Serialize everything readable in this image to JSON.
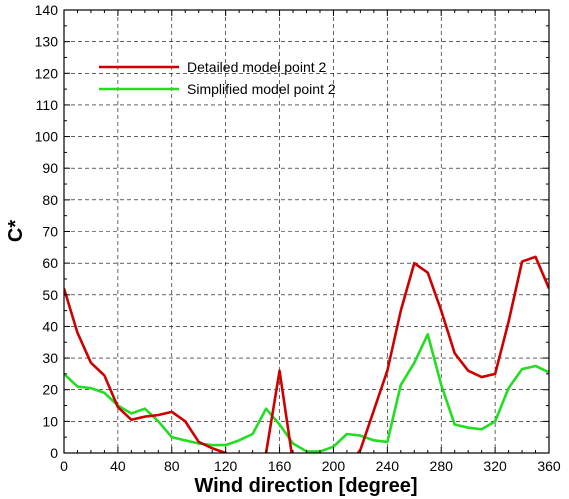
{
  "chart_data": {
    "type": "line",
    "title": "",
    "xlabel": "Wind direction [degree]",
    "ylabel": "C*",
    "xlim": [
      0,
      360
    ],
    "ylim": [
      0,
      140
    ],
    "xticks": [
      0,
      40,
      80,
      120,
      160,
      200,
      240,
      280,
      320,
      360
    ],
    "xminor_step": 10,
    "yticks": [
      0,
      10,
      20,
      30,
      40,
      50,
      60,
      70,
      80,
      90,
      100,
      110,
      120,
      130,
      140
    ],
    "grid": true,
    "grid_style": "dashed",
    "legend_position": "top-left",
    "x": [
      0,
      10,
      20,
      30,
      40,
      50,
      60,
      70,
      80,
      90,
      100,
      110,
      120,
      130,
      140,
      150,
      160,
      170,
      180,
      190,
      200,
      210,
      220,
      230,
      240,
      250,
      260,
      270,
      280,
      290,
      300,
      310,
      320,
      330,
      340,
      350,
      360
    ],
    "series": [
      {
        "name": "Detailed model point 2",
        "color": "#cc0000",
        "values": [
          52,
          38,
          28.5,
          24.5,
          14.5,
          10.5,
          11.5,
          12,
          13,
          10,
          3.5,
          1.5,
          0,
          -3,
          -6,
          0,
          26,
          -3,
          -5,
          -5,
          -5,
          -4.5,
          1,
          13.5,
          26,
          45,
          60,
          57,
          45,
          31.5,
          26,
          24,
          25,
          41.5,
          60.5,
          62,
          52
        ]
      },
      {
        "name": "Simplified model point 2",
        "color": "#22dd22",
        "values": [
          25,
          21,
          20.5,
          19,
          15,
          12.5,
          14,
          10,
          5,
          4,
          3,
          2.5,
          2.5,
          4,
          6,
          14,
          9,
          3,
          0.5,
          0.5,
          2,
          6,
          5.5,
          4,
          3.5,
          21.5,
          28.5,
          37.5,
          21.5,
          9,
          8,
          7.5,
          10,
          20.5,
          26.5,
          27.5,
          25.5
        ]
      }
    ]
  }
}
